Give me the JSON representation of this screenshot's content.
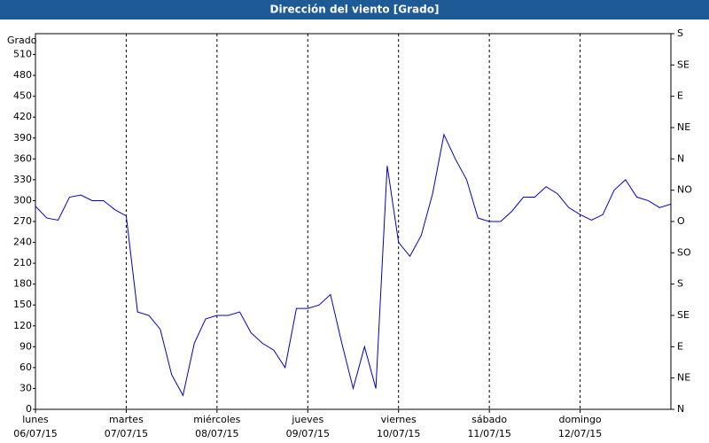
{
  "chart_data": {
    "type": "line",
    "title": "Dirección del viento [Grado]",
    "y_label": "Grado",
    "xticks": [
      {
        "day": "lunes",
        "date": "06/07/15"
      },
      {
        "day": "martes",
        "date": "07/07/15"
      },
      {
        "day": "miércoles",
        "date": "08/07/15"
      },
      {
        "day": "jueves",
        "date": "09/07/15"
      },
      {
        "day": "viernes",
        "date": "10/07/15"
      },
      {
        "day": "sábado",
        "date": "11/07/15"
      },
      {
        "day": "domingo",
        "date": "12/07/15"
      }
    ],
    "ylim": [
      0,
      540
    ],
    "yticks": [
      0,
      30,
      60,
      90,
      120,
      150,
      180,
      210,
      240,
      270,
      300,
      330,
      360,
      390,
      420,
      450,
      480,
      510
    ],
    "y2lim": [
      0,
      540
    ],
    "y2ticks": [
      {
        "value": 0,
        "label": "N"
      },
      {
        "value": 45,
        "label": "NE"
      },
      {
        "value": 90,
        "label": "E"
      },
      {
        "value": 135,
        "label": "SE"
      },
      {
        "value": 180,
        "label": "S"
      },
      {
        "value": 225,
        "label": "SO"
      },
      {
        "value": 270,
        "label": "O"
      },
      {
        "value": 315,
        "label": "NO"
      },
      {
        "value": 360,
        "label": "N"
      },
      {
        "value": 405,
        "label": "NE"
      },
      {
        "value": 450,
        "label": "E"
      },
      {
        "value": 495,
        "label": "SE"
      },
      {
        "value": 540,
        "label": "S"
      }
    ],
    "grid": true,
    "series": [
      {
        "name": "Dirección del viento",
        "color": "#0000c8",
        "values": [
          292,
          275,
          272,
          305,
          308,
          300,
          300,
          287,
          278,
          140,
          135,
          115,
          50,
          20,
          95,
          130,
          135,
          135,
          140,
          110,
          95,
          85,
          60,
          145,
          145,
          150,
          165,
          95,
          30,
          90,
          30,
          350,
          240,
          220,
          250,
          310,
          395,
          360,
          330,
          275,
          270,
          270,
          285,
          305,
          305,
          320,
          310,
          290,
          280,
          272,
          280,
          315,
          330,
          305,
          300,
          290,
          295
        ]
      }
    ]
  }
}
